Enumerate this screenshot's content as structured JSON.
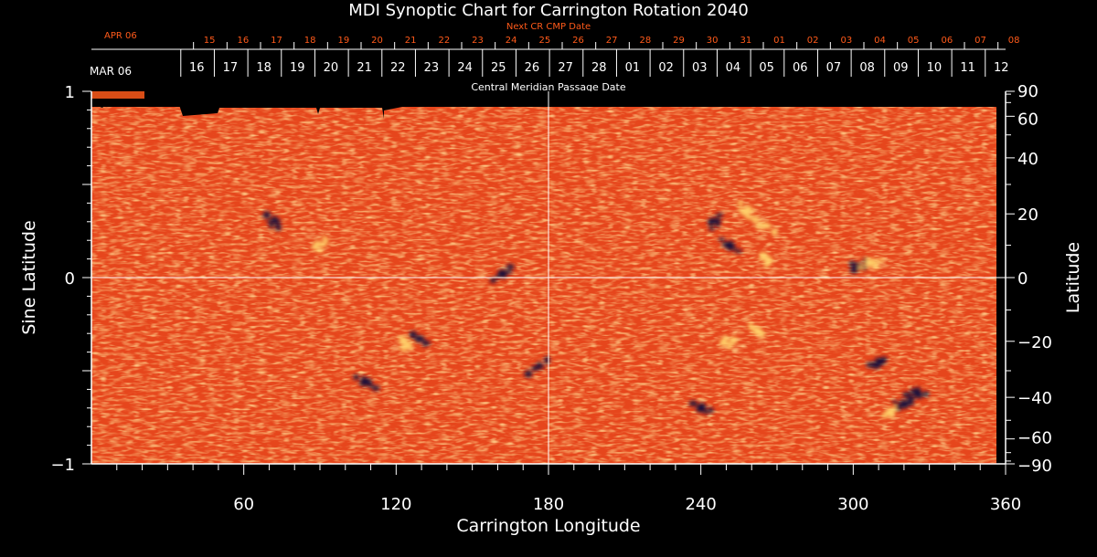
{
  "chart_data": {
    "type": "heatmap",
    "title": "MDI Synoptic Chart for Carrington Rotation 2040",
    "xlabel": "Carrington Longitude",
    "ylabel_left": "Sine Latitude",
    "ylabel_right": "Latitude",
    "xlim": [
      0,
      360
    ],
    "ylim": [
      -1,
      1
    ],
    "x_ticks": [
      60,
      120,
      180,
      240,
      300,
      360
    ],
    "y_ticks_left": [
      {
        "value": 1,
        "label": "1"
      },
      {
        "value": 0,
        "label": "0"
      },
      {
        "value": -1,
        "label": "−1"
      }
    ],
    "y_ticks_right": [
      {
        "deg": 90,
        "label": "90"
      },
      {
        "deg": 60,
        "label": "60"
      },
      {
        "deg": 40,
        "label": "40"
      },
      {
        "deg": 20,
        "label": "20"
      },
      {
        "deg": 0,
        "label": "0"
      },
      {
        "deg": -20,
        "label": "−20"
      },
      {
        "deg": -40,
        "label": "−40"
      },
      {
        "deg": -60,
        "label": "−60"
      },
      {
        "deg": -90,
        "label": "−90"
      }
    ],
    "cmp_axis": {
      "label": "Central Meridian Passage Date",
      "month_label": "MAR 06",
      "dates": [
        "12",
        "11",
        "10",
        "09",
        "08",
        "07",
        "06",
        "05",
        "04",
        "03",
        "02",
        "01",
        "28",
        "27",
        "26",
        "25",
        "24",
        "23",
        "22",
        "21",
        "20",
        "19",
        "18",
        "17",
        "16"
      ],
      "first_longitude": 352,
      "longitude_step": 13.2
    },
    "next_cr_axis": {
      "label": "Next CR CMP Date",
      "month_label": "APR 06",
      "dates": [
        "08",
        "07",
        "06",
        "05",
        "04",
        "03",
        "02",
        "01",
        "31",
        "30",
        "29",
        "28",
        "27",
        "26",
        "25",
        "24",
        "23",
        "22",
        "21",
        "20",
        "19",
        "18",
        "17",
        "16",
        "15"
      ],
      "first_longitude": 357,
      "longitude_step": 13.2
    },
    "crosshair": {
      "longitude": 180,
      "sine_latitude": 0
    },
    "active_regions": [
      {
        "lon": 124,
        "sinlat": -0.35,
        "polarity": "positive"
      },
      {
        "lon": 129,
        "sinlat": -0.33,
        "polarity": "negative"
      },
      {
        "lon": 108,
        "sinlat": -0.56,
        "polarity": "negative"
      },
      {
        "lon": 72,
        "sinlat": 0.3,
        "polarity": "negative"
      },
      {
        "lon": 90,
        "sinlat": 0.18,
        "polarity": "positive"
      },
      {
        "lon": 162,
        "sinlat": 0.02,
        "polarity": "negative"
      },
      {
        "lon": 176,
        "sinlat": -0.48,
        "polarity": "negative"
      },
      {
        "lon": 245,
        "sinlat": 0.3,
        "polarity": "negative"
      },
      {
        "lon": 258,
        "sinlat": 0.36,
        "polarity": "positive"
      },
      {
        "lon": 265,
        "sinlat": 0.28,
        "polarity": "positive"
      },
      {
        "lon": 251,
        "sinlat": 0.17,
        "polarity": "negative"
      },
      {
        "lon": 266,
        "sinlat": 0.1,
        "polarity": "positive"
      },
      {
        "lon": 302,
        "sinlat": 0.06,
        "polarity": "negative"
      },
      {
        "lon": 307,
        "sinlat": 0.08,
        "polarity": "positive"
      },
      {
        "lon": 310,
        "sinlat": -0.46,
        "polarity": "negative"
      },
      {
        "lon": 314,
        "sinlat": -0.72,
        "polarity": "positive"
      },
      {
        "lon": 320,
        "sinlat": -0.68,
        "polarity": "negative"
      },
      {
        "lon": 325,
        "sinlat": -0.62,
        "polarity": "negative"
      },
      {
        "lon": 250,
        "sinlat": -0.35,
        "polarity": "positive"
      },
      {
        "lon": 262,
        "sinlat": -0.28,
        "polarity": "positive"
      },
      {
        "lon": 240,
        "sinlat": -0.7,
        "polarity": "negative"
      }
    ],
    "grid": false
  },
  "colors": {
    "background": "#000000",
    "field_base": "#e6461c",
    "field_positive": "#ffd36b",
    "field_negative": "#1a0c3a",
    "axes": "#ffffff",
    "next_cr_axis": "#ff5a1a"
  }
}
